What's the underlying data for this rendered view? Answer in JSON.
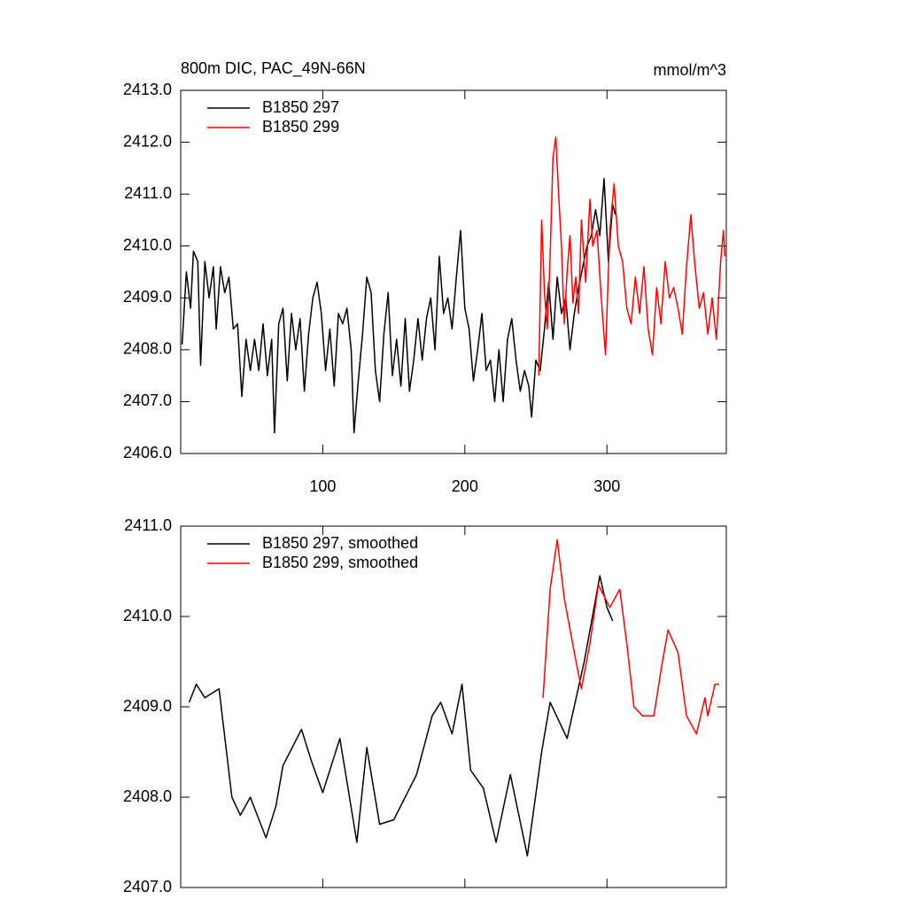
{
  "chart_data": [
    {
      "type": "line",
      "title": "800m DIC, PAC_49N-66N",
      "units": "mmol/m^3",
      "xlim": [
        0,
        384
      ],
      "xticks": [
        100,
        200,
        300
      ],
      "show_xtick_labels": true,
      "ylim": [
        2406,
        2413
      ],
      "yticks": [
        {
          "value": 2406,
          "label": "2406.0"
        },
        {
          "value": 2407,
          "label": "2407.0"
        },
        {
          "value": 2408,
          "label": "2408.0"
        },
        {
          "value": 2409,
          "label": "2409.0"
        },
        {
          "value": 2410,
          "label": "2410.0"
        },
        {
          "value": 2411,
          "label": "2411.0"
        },
        {
          "value": 2412,
          "label": "2412.0"
        },
        {
          "value": 2413,
          "label": "2413.0"
        }
      ],
      "legend": "upper-left",
      "series": [
        {
          "name": "B1850 297",
          "color": "#000000",
          "x": [
            1,
            4,
            7,
            9,
            12,
            14,
            17,
            20,
            23,
            25,
            28,
            31,
            34,
            37,
            40,
            43,
            46,
            49,
            52,
            55,
            58,
            61,
            64,
            66,
            69,
            72,
            75,
            78,
            81,
            84,
            87,
            90,
            93,
            96,
            99,
            102,
            105,
            108,
            111,
            114,
            117,
            120,
            122,
            125,
            128,
            131,
            134,
            137,
            140,
            143,
            146,
            149,
            152,
            155,
            158,
            161,
            164,
            167,
            170,
            173,
            176,
            179,
            182,
            185,
            188,
            191,
            194,
            197,
            200,
            203,
            206,
            209,
            212,
            215,
            218,
            221,
            224,
            227,
            230,
            233,
            236,
            239,
            242,
            245,
            247,
            250,
            253,
            256,
            259,
            262,
            265,
            268,
            271,
            274,
            277,
            280,
            283,
            286,
            289,
            292,
            295,
            298,
            301,
            304,
            306
          ],
          "values": [
            2408.1,
            2409.5,
            2408.8,
            2409.9,
            2409.7,
            2407.7,
            2409.7,
            2409.0,
            2409.6,
            2408.4,
            2409.6,
            2409.1,
            2409.4,
            2408.4,
            2408.5,
            2407.1,
            2408.2,
            2407.6,
            2408.2,
            2407.6,
            2408.5,
            2407.5,
            2408.2,
            2406.4,
            2408.5,
            2408.8,
            2407.4,
            2408.7,
            2408.0,
            2408.6,
            2407.2,
            2408.3,
            2409.0,
            2409.3,
            2408.7,
            2407.6,
            2408.4,
            2407.3,
            2408.7,
            2408.5,
            2408.8,
            2408.0,
            2406.4,
            2407.4,
            2408.3,
            2409.4,
            2409.1,
            2407.6,
            2407.0,
            2408.3,
            2409.1,
            2407.5,
            2408.2,
            2407.3,
            2408.6,
            2407.2,
            2407.8,
            2408.6,
            2407.8,
            2408.6,
            2409.0,
            2408.0,
            2409.8,
            2408.7,
            2409.0,
            2408.4,
            2409.4,
            2410.3,
            2408.8,
            2408.4,
            2407.4,
            2408.0,
            2408.7,
            2407.6,
            2407.8,
            2407.0,
            2408.0,
            2407.0,
            2408.2,
            2408.6,
            2407.8,
            2407.2,
            2407.6,
            2407.3,
            2406.7,
            2407.8,
            2407.6,
            2408.4,
            2409.3,
            2408.2,
            2409.4,
            2408.7,
            2409.0,
            2408.0,
            2408.7,
            2409.2,
            2409.6,
            2410.0,
            2410.2,
            2410.7,
            2410.2,
            2411.3,
            2409.7,
            2410.8,
            2410.6
          ]
        },
        {
          "name": "B1850 299",
          "color": "#ff0000",
          "x": [
            252,
            254,
            256,
            258,
            260,
            262,
            264,
            266,
            268,
            270,
            272,
            274,
            276,
            278,
            280,
            282,
            285,
            288,
            290,
            293,
            296,
            299,
            302,
            305,
            308,
            311,
            314,
            317,
            320,
            323,
            326,
            329,
            332,
            335,
            338,
            341,
            344,
            347,
            350,
            353,
            356,
            359,
            362,
            365,
            368,
            371,
            374,
            377,
            380,
            382,
            383
          ],
          "values": [
            2407.5,
            2410.5,
            2409.1,
            2408.4,
            2409.8,
            2411.7,
            2412.1,
            2411.0,
            2410.0,
            2408.5,
            2409.5,
            2410.2,
            2408.9,
            2409.4,
            2408.7,
            2410.5,
            2409.3,
            2410.9,
            2410.0,
            2410.3,
            2409.0,
            2407.9,
            2410.3,
            2411.2,
            2410.0,
            2409.7,
            2408.8,
            2408.5,
            2409.4,
            2408.7,
            2409.6,
            2408.4,
            2407.9,
            2409.2,
            2408.5,
            2409.7,
            2409.0,
            2409.2,
            2408.8,
            2408.3,
            2409.6,
            2410.6,
            2409.6,
            2408.8,
            2409.1,
            2408.3,
            2409.0,
            2408.2,
            2409.7,
            2410.3,
            2409.8
          ]
        }
      ]
    },
    {
      "type": "line",
      "xlim": [
        0,
        384
      ],
      "xticks": [
        100,
        200,
        300
      ],
      "show_xtick_labels": false,
      "ylim": [
        2407,
        2411
      ],
      "yticks": [
        {
          "value": 2407,
          "label": "2407.0"
        },
        {
          "value": 2408,
          "label": "2408.0"
        },
        {
          "value": 2409,
          "label": "2409.0"
        },
        {
          "value": 2410,
          "label": "2410.0"
        },
        {
          "value": 2411,
          "label": "2411.0"
        }
      ],
      "legend": "upper-left",
      "series": [
        {
          "name": "B1850 297, smoothed",
          "color": "#000000",
          "x": [
            6,
            11,
            17,
            27,
            36,
            42,
            49,
            60,
            67,
            72,
            85,
            92,
            100,
            112,
            124,
            131,
            140,
            150,
            166,
            177,
            183,
            191,
            198,
            204,
            213,
            222,
            232,
            244,
            254,
            260,
            272,
            284,
            295,
            300,
            304
          ],
          "values": [
            2409.05,
            2409.25,
            2409.1,
            2409.2,
            2408.0,
            2407.8,
            2408.0,
            2407.55,
            2407.9,
            2408.35,
            2408.75,
            2408.4,
            2408.05,
            2408.65,
            2407.5,
            2408.55,
            2407.7,
            2407.75,
            2408.25,
            2408.9,
            2409.05,
            2408.7,
            2409.25,
            2408.3,
            2408.1,
            2407.5,
            2408.25,
            2407.35,
            2408.5,
            2409.05,
            2408.65,
            2409.5,
            2410.45,
            2410.1,
            2409.95
          ]
        },
        {
          "name": "B1850 299, smoothed",
          "color": "#ff0000",
          "x": [
            255,
            260,
            265,
            270,
            277,
            282,
            288,
            294,
            302,
            309,
            314,
            319,
            325,
            333,
            338,
            343,
            350,
            356,
            363,
            369,
            371,
            376,
            379
          ],
          "values": [
            2409.1,
            2410.3,
            2410.85,
            2410.2,
            2409.6,
            2409.2,
            2409.7,
            2410.35,
            2410.1,
            2410.3,
            2409.7,
            2409.0,
            2408.9,
            2408.9,
            2409.4,
            2409.85,
            2409.6,
            2408.9,
            2408.7,
            2409.1,
            2408.9,
            2409.25,
            2409.25
          ]
        }
      ]
    }
  ]
}
